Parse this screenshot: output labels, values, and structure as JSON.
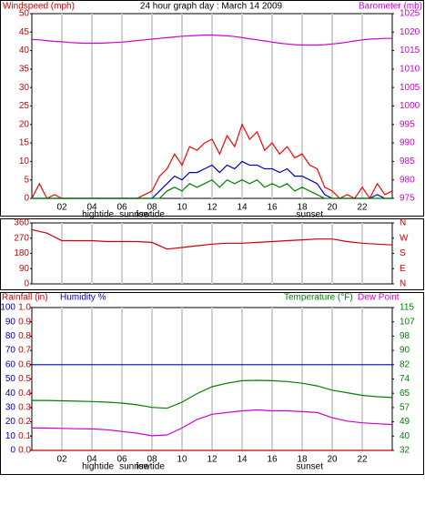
{
  "chart_data": [
    {
      "type": "line",
      "title": "24 hour graph day : March 14 2009",
      "y_label": "Windspeed (mph)",
      "xlim": [
        0,
        24
      ],
      "xticks": [
        {
          "value": 2,
          "label": "02"
        },
        {
          "value": 4,
          "label": "04"
        },
        {
          "value": 6,
          "label": "06"
        },
        {
          "value": 8,
          "label": "08"
        },
        10,
        12,
        14,
        16,
        18,
        20,
        22
      ],
      "annotations": [
        {
          "text": "hightide",
          "x": 4.4
        },
        {
          "text": "sunrise",
          "x": 6.8
        },
        {
          "text": "lowtide",
          "x": 7.9
        },
        {
          "text": "sunset",
          "x": 18.5
        }
      ],
      "ylim": [
        0,
        50
      ],
      "yticks": [
        0,
        5,
        10,
        15,
        20,
        25,
        30,
        35,
        40,
        45,
        50
      ],
      "ytick_color": "#d00000",
      "y2lim": [
        975,
        1025
      ],
      "y2ticks": [
        975,
        980,
        985,
        990,
        995,
        1000,
        1005,
        1010,
        1015,
        1020,
        1025
      ],
      "y2tick_color": "#d000d0",
      "x": [
        0,
        0.5,
        1,
        1.5,
        2,
        2.5,
        3,
        3.5,
        4,
        4.5,
        5,
        5.5,
        6,
        6.5,
        7,
        7.5,
        8,
        8.5,
        9,
        9.5,
        10,
        10.5,
        11,
        11.5,
        12,
        12.5,
        13,
        13.5,
        14,
        14.5,
        15,
        15.5,
        16,
        16.5,
        17,
        17.5,
        18,
        18.5,
        19,
        19.5,
        20,
        20.5,
        21,
        21.5,
        22,
        22.5,
        23,
        23.5,
        24
      ],
      "series": [
        {
          "color": "#ff0000",
          "axis": "y",
          "values": [
            0,
            4,
            0,
            1,
            0,
            0,
            0,
            0,
            0,
            0,
            0,
            0,
            0,
            0,
            0,
            1,
            2,
            6,
            8,
            12,
            9,
            14,
            13,
            15,
            16,
            12,
            17,
            14,
            20,
            16,
            18,
            13,
            15,
            12,
            14,
            11,
            12,
            9,
            8,
            3,
            2,
            0,
            1,
            0,
            3,
            0,
            4,
            1,
            2
          ]
        },
        {
          "color": "#0000c0",
          "axis": "y",
          "values": [
            0,
            0,
            0,
            0,
            0,
            0,
            0,
            0,
            0,
            0,
            0,
            0,
            0,
            0,
            0,
            0,
            0,
            2,
            4,
            6,
            5,
            7,
            7,
            8,
            9,
            7,
            9,
            8,
            10,
            9,
            9,
            8,
            8,
            7,
            8,
            6,
            6,
            5,
            4,
            1,
            0,
            0,
            0,
            0,
            0,
            0,
            1,
            0,
            0
          ]
        },
        {
          "color": "#008000",
          "axis": "y",
          "values": [
            0,
            0,
            0,
            0,
            0,
            0,
            0,
            0,
            0,
            0,
            0,
            0,
            0,
            0,
            0,
            0,
            0,
            0,
            2,
            3,
            2,
            4,
            3,
            4,
            5,
            3,
            5,
            4,
            5,
            4,
            5,
            3,
            4,
            3,
            4,
            2,
            3,
            2,
            1,
            0,
            0,
            0,
            0,
            0,
            0,
            0,
            0,
            0,
            0
          ]
        },
        {
          "name": "Barometer (mb)",
          "color": "#d000d0",
          "axis": "y2",
          "values": [
            1018,
            1017.9,
            1017.7,
            1017.5,
            1017.4,
            1017.2,
            1017.1,
            1017,
            1017,
            1017,
            1017.1,
            1017.2,
            1017.3,
            1017.5,
            1017.7,
            1017.9,
            1018.1,
            1018.3,
            1018.5,
            1018.7,
            1018.9,
            1019,
            1019.1,
            1019.2,
            1019.2,
            1019.1,
            1019,
            1018.8,
            1018.5,
            1018.2,
            1017.9,
            1017.6,
            1017.3,
            1017,
            1016.8,
            1016.6,
            1016.5,
            1016.5,
            1016.5,
            1016.6,
            1016.8,
            1017,
            1017.3,
            1017.6,
            1017.9,
            1018.1,
            1018.2,
            1018.3,
            1018.3
          ]
        }
      ]
    },
    {
      "type": "line",
      "xlim": [
        0,
        24
      ],
      "ylim": [
        0,
        360
      ],
      "yticks": [
        0,
        90,
        180,
        270,
        360
      ],
      "ytick_color": "#d00000",
      "y2lim": [
        0,
        360
      ],
      "y2ticks": [
        {
          "value": 0,
          "label": "N"
        },
        {
          "value": 90,
          "label": "E"
        },
        {
          "value": 180,
          "label": "S"
        },
        {
          "value": 270,
          "label": "W"
        },
        {
          "value": 360,
          "label": "N"
        }
      ],
      "y2tick_color": "#d00000",
      "x": [
        0,
        1,
        2,
        3,
        4,
        5,
        6,
        7,
        8,
        9,
        10,
        11,
        12,
        13,
        14,
        15,
        16,
        17,
        18,
        19,
        20,
        21,
        22,
        23,
        24
      ],
      "series": [
        {
          "color": "#d00000",
          "axis": "y",
          "values": [
            320,
            300,
            255,
            255,
            255,
            250,
            250,
            250,
            245,
            205,
            215,
            225,
            235,
            240,
            240,
            245,
            250,
            255,
            260,
            265,
            265,
            250,
            240,
            235,
            230
          ]
        }
      ]
    },
    {
      "type": "line",
      "xlim": [
        0,
        24
      ],
      "xticks": [
        {
          "value": 2,
          "label": "02"
        },
        {
          "value": 4,
          "label": "04"
        },
        {
          "value": 6,
          "label": "06"
        },
        {
          "value": 8,
          "label": "08"
        },
        10,
        12,
        14,
        16,
        18,
        20,
        22
      ],
      "annotations": [
        {
          "text": "hightide",
          "x": 4.4
        },
        {
          "text": "sunrise",
          "x": 6.8
        },
        {
          "text": "lowtide",
          "x": 7.9
        },
        {
          "text": "sunset",
          "x": 18.5
        }
      ],
      "ylim": [
        0,
        1
      ],
      "yticks": [
        {
          "value": 0,
          "label": "0.0"
        },
        {
          "value": 0.1,
          "label": "0.1"
        },
        {
          "value": 0.2,
          "label": "0.2"
        },
        {
          "value": 0.3,
          "label": "0.3"
        },
        {
          "value": 0.4,
          "label": "0.4"
        },
        {
          "value": 0.5,
          "label": "0.5"
        },
        {
          "value": 0.6,
          "label": "0.6"
        },
        {
          "value": 0.7,
          "label": "0.7"
        },
        {
          "value": 0.8,
          "label": "0.8"
        },
        {
          "value": 0.9,
          "label": "0.9"
        },
        {
          "value": 1,
          "label": "1.0"
        }
      ],
      "ytick_color": "#d00000",
      "y3lim": [
        0,
        100
      ],
      "y3ticks": [
        0,
        10,
        20,
        30,
        40,
        50,
        60,
        70,
        80,
        90,
        100
      ],
      "y3tick_color": "#0000c0",
      "y2lim": [
        32,
        115
      ],
      "y2ticks": [
        32,
        {
          "value": 40.3,
          "label": "40"
        },
        {
          "value": 48.6,
          "label": "49"
        },
        {
          "value": 56.9,
          "label": "57"
        },
        {
          "value": 65.2,
          "label": "65"
        },
        {
          "value": 73.5,
          "label": "74"
        },
        {
          "value": 81.8,
          "label": "82"
        },
        {
          "value": 90.1,
          "label": "90"
        },
        {
          "value": 98.4,
          "label": "98"
        },
        {
          "value": 106.7,
          "label": "107"
        },
        115
      ],
      "y2tick_color": "#008000",
      "x": [
        0,
        1,
        2,
        3,
        4,
        5,
        6,
        7,
        8,
        9,
        10,
        11,
        12,
        13,
        14,
        15,
        16,
        17,
        18,
        19,
        20,
        21,
        22,
        23,
        24
      ],
      "series": [
        {
          "name": "Rainfall (in)",
          "color": "#d00000",
          "axis": "y",
          "values": [
            0,
            0,
            0,
            0,
            0,
            0,
            0,
            0,
            0,
            0,
            0,
            0,
            0,
            0,
            0,
            0,
            0,
            0,
            0,
            0,
            0,
            0,
            0,
            0,
            0
          ]
        },
        {
          "name": "Humidity %",
          "color": "#0000c0",
          "axis": "y3",
          "values": [
            60,
            60,
            60,
            60,
            60,
            60,
            60,
            60,
            60,
            60,
            60,
            60,
            60,
            60,
            60,
            60,
            60,
            60,
            60,
            60,
            60,
            60,
            60,
            60,
            60
          ]
        },
        {
          "name": "Temperature (°F)",
          "color": "#008000",
          "axis": "y2",
          "values": [
            61,
            61,
            60.8,
            60.6,
            60.4,
            60,
            59.5,
            58.5,
            57,
            56.5,
            60,
            65,
            69,
            71,
            72.5,
            72.7,
            72.5,
            72,
            71,
            69.5,
            67,
            65.5,
            64,
            63.2,
            62.7
          ]
        },
        {
          "name": "Dew Point",
          "color": "#d000d0",
          "axis": "y2",
          "values": [
            45,
            45,
            44.8,
            44.6,
            44.5,
            44,
            43,
            42,
            40.5,
            41,
            45,
            50,
            53,
            54,
            55,
            55.5,
            55,
            55,
            54.5,
            54,
            51,
            49,
            48,
            47.5,
            47
          ]
        }
      ]
    }
  ]
}
